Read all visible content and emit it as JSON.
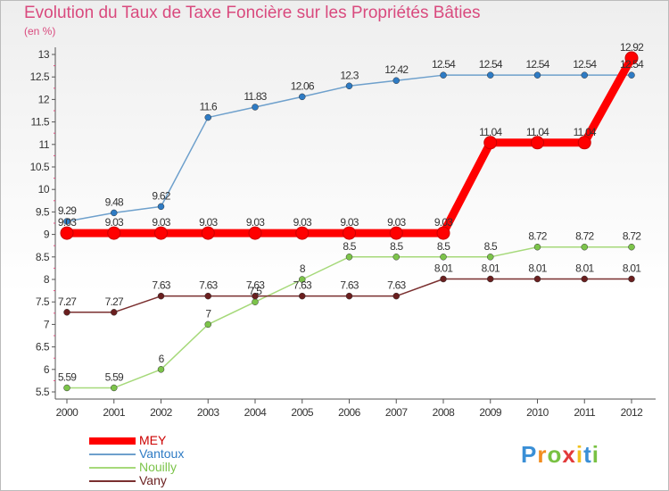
{
  "chart_data": {
    "type": "line",
    "title": "Evolution du Taux de Taxe Foncière sur les Propriétés Bâties",
    "subtitle": "(en %)",
    "categories": [
      "2000",
      "2001",
      "2002",
      "2003",
      "2004",
      "2005",
      "2006",
      "2007",
      "2008",
      "2009",
      "2010",
      "2011",
      "2012"
    ],
    "y_ticks": [
      "5.5",
      "6",
      "6.5",
      "7",
      "7.5",
      "8",
      "8.5",
      "9",
      "9.5",
      "10",
      "10.5",
      "11",
      "11.5",
      "12",
      "12.5",
      "13"
    ],
    "ylim": [
      5.5,
      13
    ],
    "series": [
      {
        "name": "MEY",
        "color": "#ff0000",
        "marker_color": "#cc0000",
        "values": [
          9.03,
          9.03,
          9.03,
          9.03,
          9.03,
          9.03,
          9.03,
          9.03,
          9.03,
          11.04,
          11.04,
          11.04,
          12.92
        ],
        "labels": [
          "9.03",
          "9.03",
          "9.03",
          "9.03",
          "9.03",
          "9.03",
          "9.03",
          "9.03",
          "9.03",
          "11.04",
          "11.04",
          "11.04",
          "12.92"
        ]
      },
      {
        "name": "Vantoux",
        "color": "#6ea0cc",
        "marker_color": "#2e7bc4",
        "values": [
          9.29,
          9.48,
          9.62,
          11.6,
          11.83,
          12.06,
          12.3,
          12.42,
          12.54,
          12.54,
          12.54,
          12.54,
          12.54
        ],
        "labels": [
          "9.29",
          "9.48",
          "9.62",
          "11.6",
          "11.83",
          "12.06",
          "12.3",
          "12.42",
          "12.54",
          "12.54",
          "12.54",
          "12.54",
          "12.54"
        ]
      },
      {
        "name": "Nouilly",
        "color": "#a6d97a",
        "marker_color": "#7cc44a",
        "values": [
          5.59,
          5.59,
          6,
          7,
          7.5,
          8,
          8.5,
          8.5,
          8.5,
          8.5,
          8.72,
          8.72,
          8.72
        ],
        "labels": [
          "5.59",
          "5.59",
          "6",
          "7",
          "7.5",
          "8",
          "8.5",
          "8.5",
          "8.5",
          "8.5",
          "8.72",
          "8.72",
          "8.72"
        ]
      },
      {
        "name": "Vany",
        "color": "#7a2f2f",
        "marker_color": "#6a1f1f",
        "values": [
          7.27,
          7.27,
          7.63,
          7.63,
          7.63,
          7.63,
          7.63,
          7.63,
          8.01,
          8.01,
          8.01,
          8.01,
          8.01
        ],
        "labels": [
          "7.27",
          "7.27",
          "7.63",
          "7.63",
          "7.63",
          "7.63",
          "7.63",
          "7.63",
          "8.01",
          "8.01",
          "8.01",
          "8.01",
          "8.01"
        ]
      }
    ],
    "legend": [
      "MEY",
      "Vantoux",
      "Nouilly",
      "Vany"
    ]
  },
  "logo": {
    "letters": [
      "P",
      "r",
      "o",
      "x",
      "i",
      "t",
      "i"
    ],
    "colors": [
      "#3a8fd6",
      "#f28c1e",
      "#79c143",
      "#e23a3a",
      "#f2c21e",
      "#3a8fd6",
      "#79c143"
    ]
  }
}
